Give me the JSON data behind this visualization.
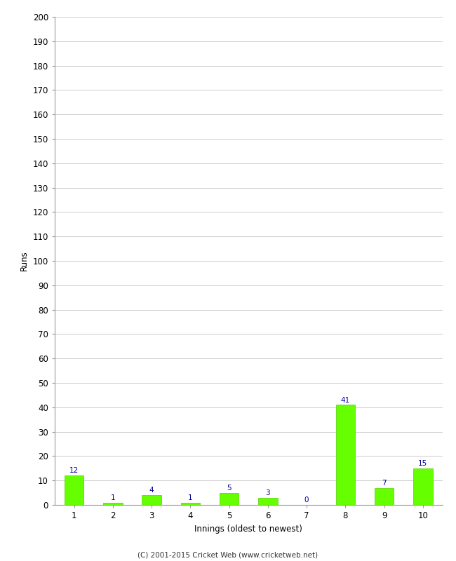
{
  "categories": [
    "1",
    "2",
    "3",
    "4",
    "5",
    "6",
    "7",
    "8",
    "9",
    "10"
  ],
  "values": [
    12,
    1,
    4,
    1,
    5,
    3,
    0,
    41,
    7,
    15
  ],
  "bar_color": "#66ff00",
  "bar_edge_color": "#55cc00",
  "xlabel": "Innings (oldest to newest)",
  "ylabel": "Runs",
  "ylim": [
    0,
    200
  ],
  "yticks": [
    0,
    10,
    20,
    30,
    40,
    50,
    60,
    70,
    80,
    90,
    100,
    110,
    120,
    130,
    140,
    150,
    160,
    170,
    180,
    190,
    200
  ],
  "annotation_color": "#000099",
  "annotation_fontsize": 7.5,
  "footer": "(C) 2001-2015 Cricket Web (www.cricketweb.net)",
  "background_color": "#ffffff",
  "grid_color": "#cccccc"
}
